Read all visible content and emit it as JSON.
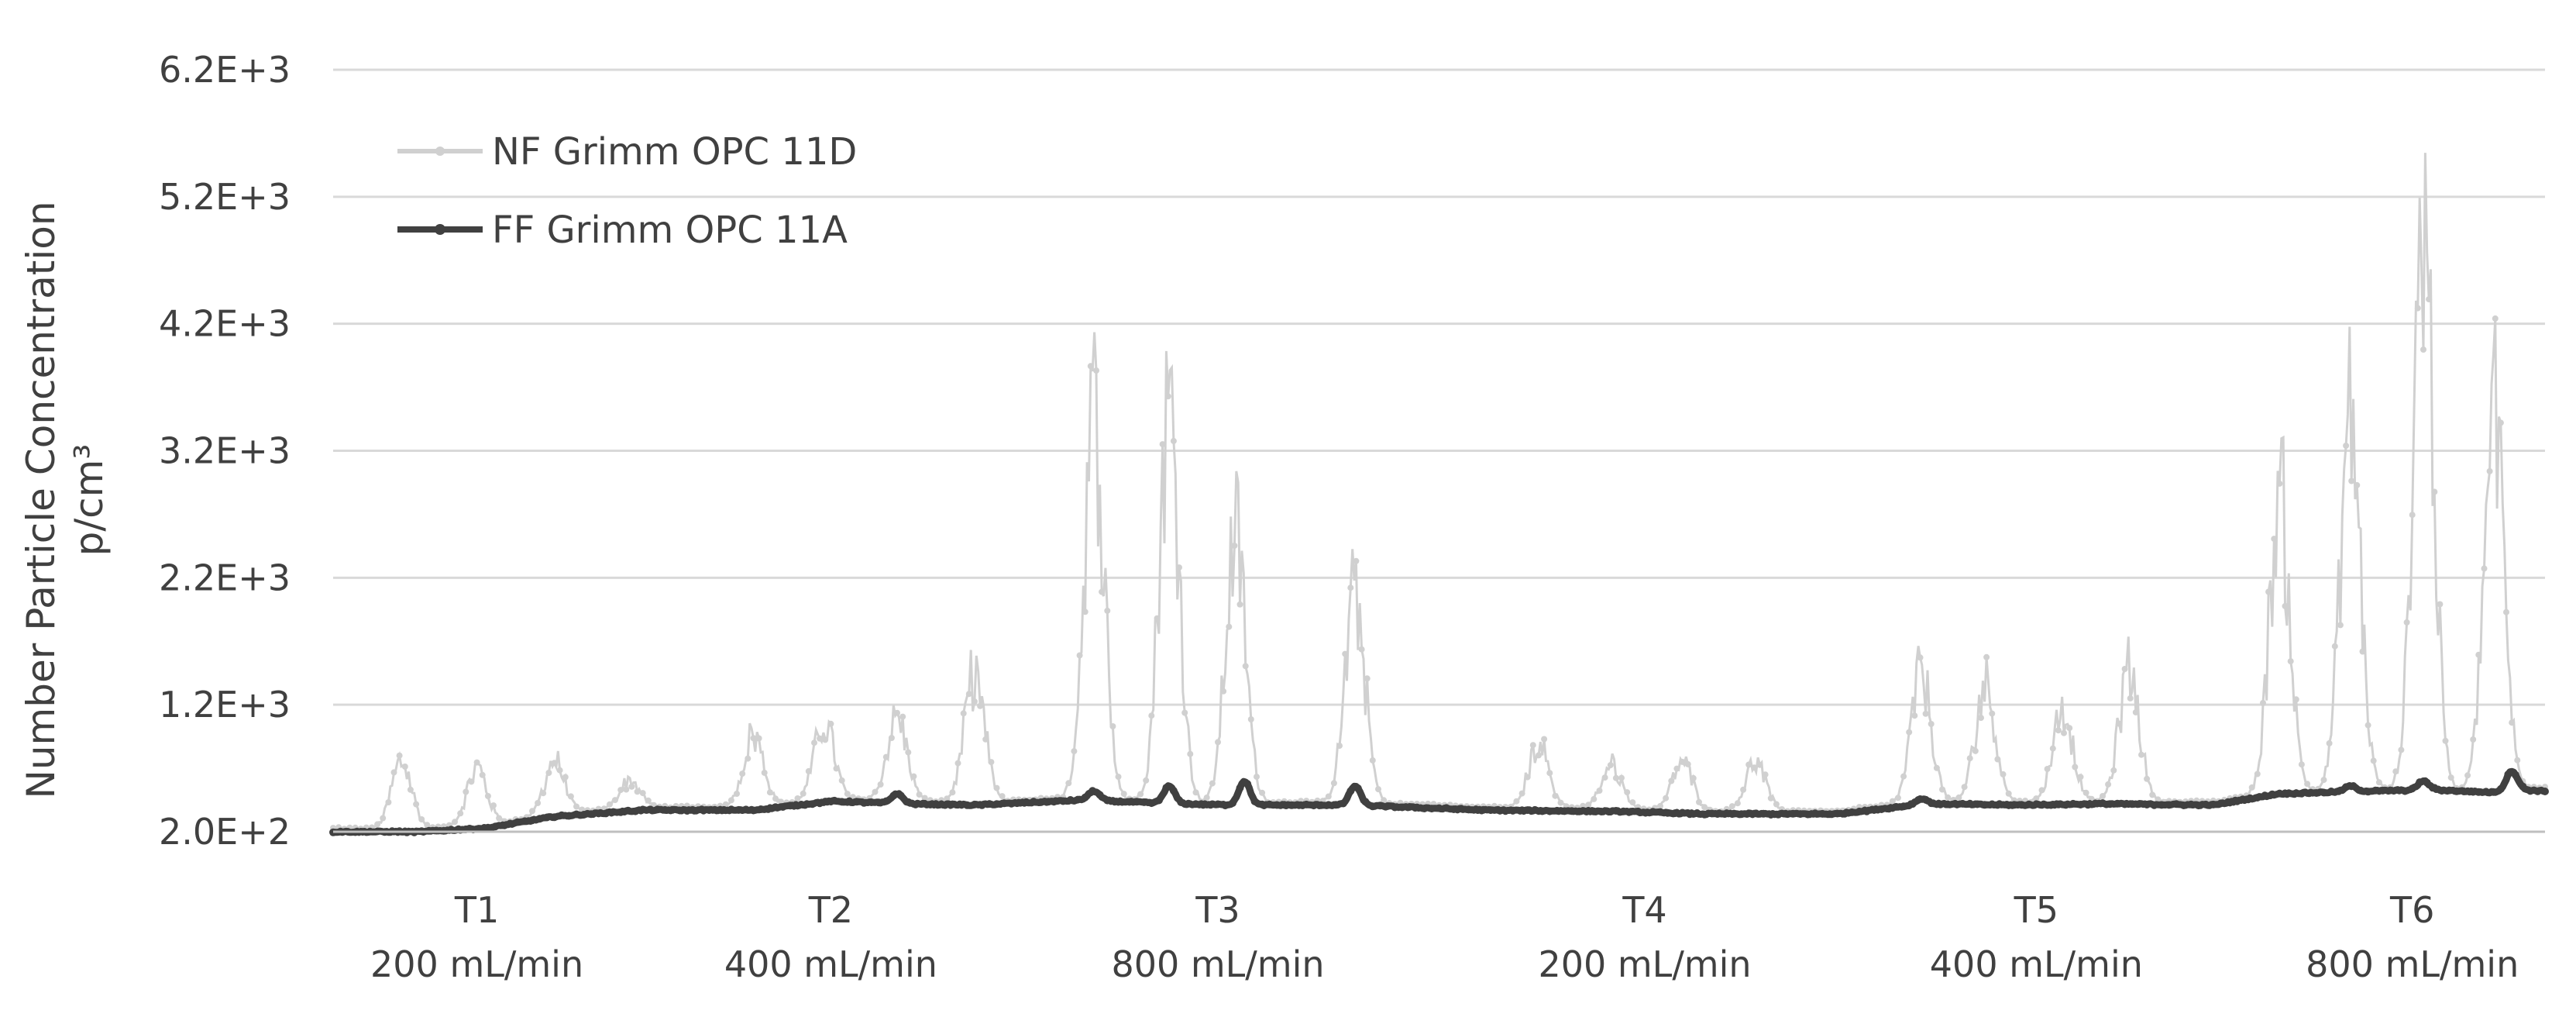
{
  "chart_data": {
    "type": "line",
    "ylabel": [
      "Number Particle Concentration",
      "p/cm³"
    ],
    "xlabel": "",
    "ylim": [
      200,
      6200
    ],
    "yticks": [
      "2.0E+2",
      "1.2E+3",
      "2.2E+3",
      "3.2E+3",
      "4.2E+3",
      "5.2E+3",
      "6.2E+3"
    ],
    "ytick_values": [
      200,
      1200,
      2200,
      3200,
      4200,
      5200,
      6200
    ],
    "grid": true,
    "legend_position": "top-left",
    "categories": [
      {
        "label": "T1",
        "sub": "200 mL/min"
      },
      {
        "label": "T2",
        "sub": "400 mL/min"
      },
      {
        "label": "T3",
        "sub": "800 mL/min"
      },
      {
        "label": "T4",
        "sub": "200 mL/min"
      },
      {
        "label": "T5",
        "sub": "400 mL/min"
      },
      {
        "label": "T6",
        "sub": "800 mL/min"
      }
    ],
    "x_range": [
      0,
      1000
    ],
    "category_centers": [
      65,
      225,
      400,
      593,
      770,
      940
    ],
    "series": [
      {
        "name": "NF Grimm OPC 11D",
        "color": "#d0d0d0",
        "peaks": [
          [
            31,
            880
          ],
          [
            65,
            800
          ],
          [
            100,
            850
          ],
          [
            134,
            640
          ],
          [
            190,
            1100
          ],
          [
            222,
            1200
          ],
          [
            255,
            1250
          ],
          [
            290,
            1700
          ],
          [
            344,
            4300
          ],
          [
            378,
            4400
          ],
          [
            408,
            3100
          ],
          [
            462,
            2500
          ],
          [
            545,
            1000
          ],
          [
            578,
            800
          ],
          [
            610,
            830
          ],
          [
            643,
            830
          ],
          [
            718,
            1700
          ],
          [
            747,
            1600
          ],
          [
            782,
            1350
          ],
          [
            812,
            1750
          ],
          [
            880,
            3500
          ],
          [
            912,
            4300
          ],
          [
            945,
            6300
          ],
          [
            977,
            4300
          ]
        ]
      },
      {
        "name": "FF Grimm OPC 11A",
        "color": "#404040",
        "x": [
          0,
          40,
          70,
          100,
          140,
          190,
          225,
          260,
          290,
          340,
          380,
          410,
          460,
          520,
          580,
          620,
          680,
          720,
          760,
          800,
          850,
          880,
          920,
          950,
          975,
          990,
          1000
        ],
        "values": [
          200,
          200,
          230,
          320,
          370,
          370,
          440,
          420,
          410,
          450,
          420,
          410,
          410,
          370,
          360,
          340,
          340,
          420,
          410,
          420,
          410,
          500,
          520,
          530,
          510,
          530,
          520
        ],
        "bumps": [
          [
            255,
            500
          ],
          [
            344,
            520
          ],
          [
            378,
            560
          ],
          [
            412,
            600
          ],
          [
            462,
            560
          ],
          [
            718,
            460
          ],
          [
            912,
            560
          ],
          [
            945,
            600
          ],
          [
            985,
            680
          ]
        ]
      }
    ]
  }
}
